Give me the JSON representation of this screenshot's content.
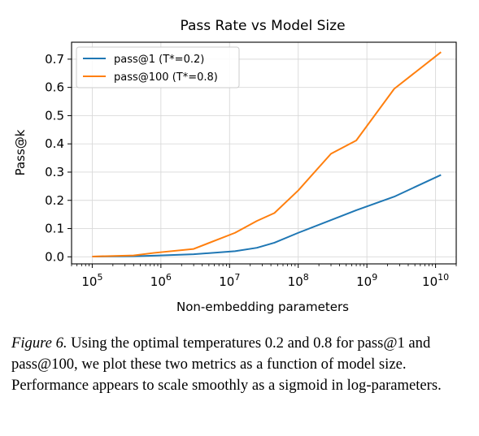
{
  "chart_data": {
    "type": "line",
    "title": "Pass Rate vs Model Size",
    "xlabel": "Non-embedding parameters",
    "ylabel": "Pass@k",
    "xscale": "log",
    "xlim": [
      50000,
      20000000000
    ],
    "ylim": [
      -0.025,
      0.76
    ],
    "grid": true,
    "legend_position": "top-left",
    "x_ticks": [
      100000,
      1000000,
      10000000,
      100000000,
      1000000000,
      10000000000
    ],
    "x_tick_labels": [
      {
        "base": "10",
        "exp": "5"
      },
      {
        "base": "10",
        "exp": "6"
      },
      {
        "base": "10",
        "exp": "7"
      },
      {
        "base": "10",
        "exp": "8"
      },
      {
        "base": "10",
        "exp": "9"
      },
      {
        "base": "10",
        "exp": "10"
      }
    ],
    "y_ticks": [
      0.0,
      0.1,
      0.2,
      0.3,
      0.4,
      0.5,
      0.6,
      0.7
    ],
    "y_tick_labels": [
      "0.0",
      "0.1",
      "0.2",
      "0.3",
      "0.4",
      "0.5",
      "0.6",
      "0.7"
    ],
    "series": [
      {
        "name": "pass@1 (T*=0.2)",
        "color": "#1f77b4",
        "points": [
          [
            100000,
            0.001
          ],
          [
            400000,
            0.002
          ],
          [
            800000,
            0.004
          ],
          [
            3000000,
            0.009
          ],
          [
            12000000,
            0.02
          ],
          [
            25000000,
            0.032
          ],
          [
            45000000,
            0.05
          ],
          [
            100000000,
            0.085
          ],
          [
            300000000,
            0.13
          ],
          [
            700000000,
            0.165
          ],
          [
            2500000000,
            0.213
          ],
          [
            12000000000,
            0.29
          ]
        ]
      },
      {
        "name": "pass@100 (T*=0.8)",
        "color": "#ff7f0e",
        "points": [
          [
            100000,
            0.001
          ],
          [
            400000,
            0.005
          ],
          [
            800000,
            0.014
          ],
          [
            3000000,
            0.028
          ],
          [
            12000000,
            0.085
          ],
          [
            25000000,
            0.127
          ],
          [
            45000000,
            0.155
          ],
          [
            100000000,
            0.235
          ],
          [
            300000000,
            0.365
          ],
          [
            700000000,
            0.412
          ],
          [
            2500000000,
            0.595
          ],
          [
            12000000000,
            0.725
          ]
        ]
      }
    ]
  },
  "caption": {
    "label": "Figure 6.",
    "text": " Using the optimal temperatures 0.2 and 0.8 for pass@1 and pass@100, we plot these two metrics as a function of model size. Performance appears to scale smoothly as a sigmoid in log-parameters."
  }
}
